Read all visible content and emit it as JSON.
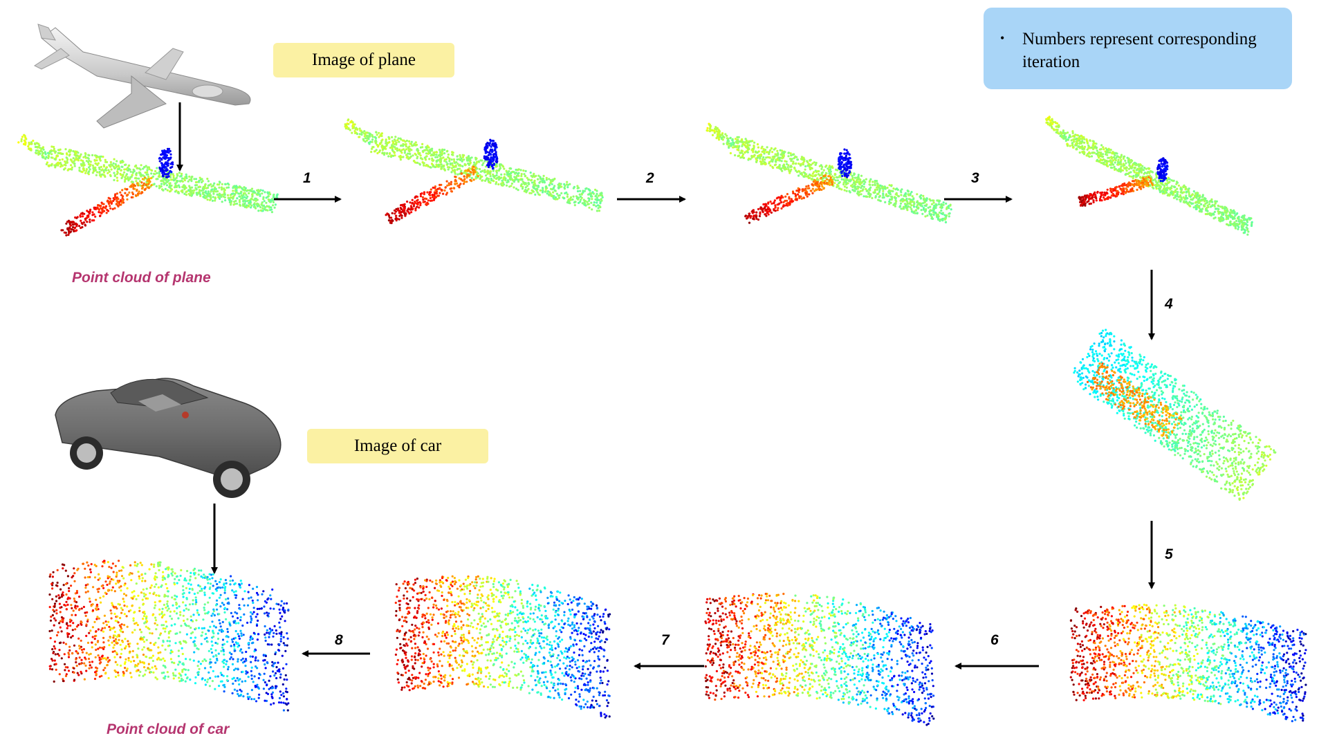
{
  "labels": {
    "image_of_plane": "Image of plane",
    "image_of_car": "Image of car",
    "point_cloud_of_plane": "Point cloud of plane",
    "point_cloud_of_car": "Point cloud of car"
  },
  "note": {
    "bullet": "•",
    "text": "Numbers represent corresponding iteration"
  },
  "steps": [
    "1",
    "2",
    "3",
    "4",
    "5",
    "6",
    "7",
    "8"
  ],
  "colors": {
    "label_box": "#fbf1a3",
    "note_box": "#a9d5f7",
    "caption": "#b5356f",
    "arrow": "#000000"
  },
  "icons": [
    "airplane-render",
    "car-render"
  ],
  "point_cloud_colormap": "jet"
}
